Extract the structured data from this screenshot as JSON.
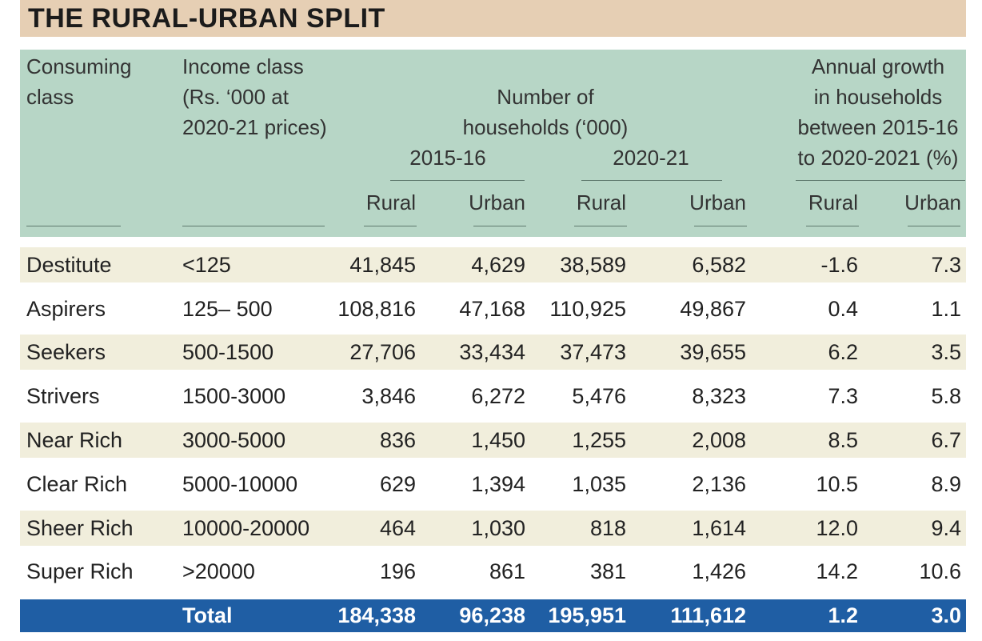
{
  "title": "THE RURAL-URBAN SPLIT",
  "headers": {
    "consuming_class": [
      "Consuming",
      "class"
    ],
    "income_class": [
      "Income class",
      "(Rs. ‘000 at",
      "2020-21 prices)"
    ],
    "households": [
      "Number of",
      "households (‘000)"
    ],
    "year_a": "2015-16",
    "year_b": "2020-21",
    "growth": [
      "Annual growth",
      "in households",
      "between 2015-16",
      "to 2020-2021 (%)"
    ],
    "sub": [
      "Rural",
      "Urban",
      "Rural",
      "Urban",
      "Rural",
      "Urban"
    ]
  },
  "chart_data": {
    "type": "table",
    "title": "THE RURAL-URBAN SPLIT",
    "columns": [
      "Consuming class",
      "Income class (Rs. ‘000 at 2020-21 prices)",
      "2015-16 Rural",
      "2015-16 Urban",
      "2020-21 Rural",
      "2020-21 Urban",
      "Growth Rural (%)",
      "Growth Urban (%)"
    ],
    "rows": [
      [
        "Destitute",
        "<125",
        "41,845",
        "4,629",
        "38,589",
        "6,582",
        "-1.6",
        "7.3"
      ],
      [
        "Aspirers",
        "125– 500",
        "108,816",
        "47,168",
        "110,925",
        "49,867",
        "0.4",
        "1.1"
      ],
      [
        "Seekers",
        "500-1500",
        "27,706",
        "33,434",
        "37,473",
        "39,655",
        "6.2",
        "3.5"
      ],
      [
        "Strivers",
        "1500-3000",
        "3,846",
        "6,272",
        "5,476",
        "8,323",
        "7.3",
        "5.8"
      ],
      [
        "Near Rich",
        "3000-5000",
        "836",
        "1,450",
        "1,255",
        "2,008",
        "8.5",
        "6.7"
      ],
      [
        "Clear Rich",
        "5000-10000",
        "629",
        "1,394",
        "1,035",
        "2,136",
        "10.5",
        "8.9"
      ],
      [
        "Sheer Rich",
        "10000-20000",
        "464",
        "1,030",
        "818",
        "1,614",
        "12.0",
        "9.4"
      ],
      [
        "Super Rich",
        ">20000",
        "196",
        "861",
        "381",
        "1,426",
        "14.2",
        "10.6"
      ]
    ],
    "total": [
      "",
      "Total",
      "184,338",
      "96,238",
      "195,951",
      "111,612",
      "1.2",
      "3.0"
    ]
  }
}
